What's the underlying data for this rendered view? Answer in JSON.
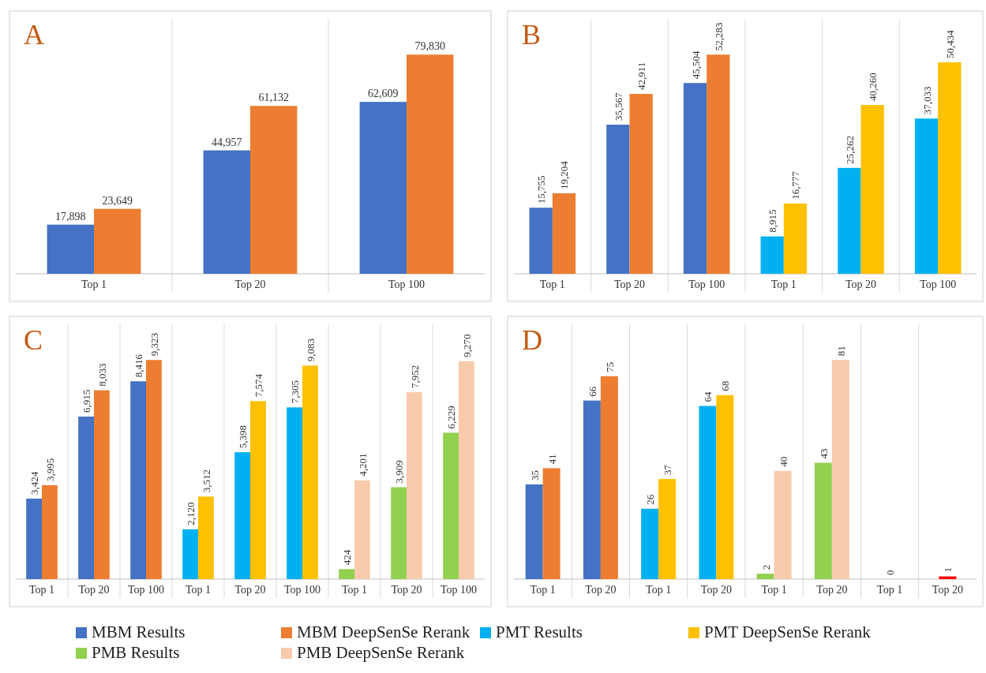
{
  "chart_data": [
    {
      "type": "bar",
      "title": "A",
      "categories": [
        "Top 1",
        "Top 20",
        "Top 100"
      ],
      "series": [
        {
          "color": "#4472c4",
          "values": [
            17898,
            44957,
            62609
          ],
          "value_labels": [
            "17,898",
            "44,957",
            "62,609"
          ]
        },
        {
          "color": "#ed7d31",
          "values": [
            23649,
            61132,
            79830
          ],
          "value_labels": [
            "23,649",
            "61,132",
            "79,830"
          ]
        }
      ]
    },
    {
      "type": "bar",
      "title": "B",
      "categories": [
        "Top 1",
        "Top 20",
        "Top 100",
        "Top 1",
        "Top 20",
        "Top 100"
      ],
      "series": [
        {
          "color": "#4472c4",
          "values": [
            15755,
            35567,
            45504,
            null,
            null,
            null
          ],
          "value_labels": [
            "15,755",
            "35,567",
            "45,504",
            null,
            null,
            null
          ]
        },
        {
          "color": "#ed7d31",
          "values": [
            19204,
            42911,
            52283,
            null,
            null,
            null
          ],
          "value_labels": [
            "19,204",
            "42,911",
            "52,283",
            null,
            null,
            null
          ]
        },
        {
          "color": "#00b0f0",
          "values": [
            null,
            null,
            null,
            8915,
            25262,
            37033
          ],
          "value_labels": [
            null,
            null,
            null,
            "8,915",
            "25,262",
            "37,033"
          ]
        },
        {
          "color": "#ffc000",
          "values": [
            null,
            null,
            null,
            16777,
            40260,
            50434
          ],
          "value_labels": [
            null,
            null,
            null,
            "16,777",
            "40,260",
            "50,434"
          ]
        }
      ]
    },
    {
      "type": "bar",
      "title": "C",
      "categories": [
        "Top 1",
        "Top 20",
        "Top 100",
        "Top 1",
        "Top 20",
        "Top 100",
        "Top 1",
        "Top 20",
        "Top 100"
      ],
      "series": [
        {
          "color": "#4472c4",
          "values": [
            3424,
            6915,
            8416,
            null,
            null,
            null,
            null,
            null,
            null
          ],
          "value_labels": [
            "3,424",
            "6,915",
            "8,416",
            null,
            null,
            null,
            null,
            null,
            null
          ]
        },
        {
          "color": "#ed7d31",
          "values": [
            3995,
            8033,
            9323,
            null,
            null,
            null,
            null,
            null,
            null
          ],
          "value_labels": [
            "3,995",
            "8,033",
            "9,323",
            null,
            null,
            null,
            null,
            null,
            null
          ]
        },
        {
          "color": "#00b0f0",
          "values": [
            null,
            null,
            null,
            2120,
            5398,
            7305,
            null,
            null,
            null
          ],
          "value_labels": [
            null,
            null,
            null,
            "2,120",
            "5,398",
            "7,305",
            null,
            null,
            null
          ]
        },
        {
          "color": "#ffc000",
          "values": [
            null,
            null,
            null,
            3512,
            7574,
            9083,
            null,
            null,
            null
          ],
          "value_labels": [
            null,
            null,
            null,
            "3,512",
            "7,574",
            "9,083",
            null,
            null,
            null
          ]
        },
        {
          "color": "#92d050",
          "values": [
            null,
            null,
            null,
            null,
            null,
            null,
            424,
            3909,
            6229
          ],
          "value_labels": [
            null,
            null,
            null,
            null,
            null,
            null,
            "424",
            "3,909",
            "6,229"
          ]
        },
        {
          "color": "#f8cbad",
          "values": [
            null,
            null,
            null,
            null,
            null,
            null,
            4201,
            7952,
            9270
          ],
          "value_labels": [
            null,
            null,
            null,
            null,
            null,
            null,
            "4,201",
            "7,952",
            "9,270"
          ]
        }
      ]
    },
    {
      "type": "bar",
      "title": "D",
      "categories": [
        "Top 1",
        "Top 20",
        "Top 1",
        "Top 20",
        "Top 1",
        "Top 20",
        "Top 1",
        "Top 20"
      ],
      "data_labels": true,
      "legend": "bottom",
      "series": [
        {
          "name": "MBM Results",
          "color": "#4472c4",
          "values": [
            35,
            66,
            null,
            null,
            null,
            null,
            null,
            null
          ]
        },
        {
          "name": "MBM DeepSenSe Rerank",
          "color": "#ed7d31",
          "values": [
            41,
            75,
            null,
            null,
            null,
            null,
            null,
            null
          ]
        },
        {
          "name": "PMT Results",
          "color": "#00b0f0",
          "values": [
            null,
            null,
            26,
            64,
            null,
            null,
            null,
            null
          ]
        },
        {
          "name": "PMT DeepSenSe Rerank",
          "color": "#ffc000",
          "values": [
            null,
            null,
            37,
            68,
            null,
            null,
            null,
            null
          ]
        },
        {
          "name": "PMB Results",
          "color": "#92d050",
          "values": [
            null,
            null,
            null,
            null,
            2,
            43,
            null,
            null
          ]
        },
        {
          "name": "PMB DeepSenSe Rerank",
          "color": "#f8cbad",
          "values": [
            null,
            null,
            null,
            null,
            40,
            81,
            null,
            null
          ]
        },
        {
          "color": "#ff0000",
          "values": [
            null,
            null,
            null,
            null,
            null,
            null,
            0,
            1
          ]
        }
      ]
    }
  ]
}
